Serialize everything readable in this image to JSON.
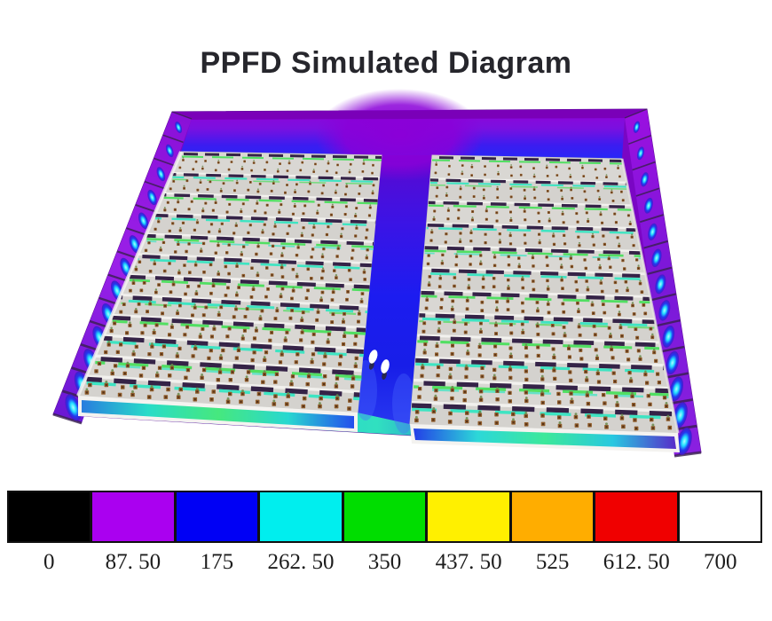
{
  "title": "PPFD Simulated Diagram",
  "diagram": {
    "description": "3D PPFD heat-map simulation of a grow room: two plant rack blocks with LED bars, purple walls with blue light pools, blue central aisle, two people standing in the aisle",
    "rows_per_rack": 12,
    "people_count": 2,
    "colors": {
      "floor_base": "#7A06C4",
      "wall_edge_dark": "#5A0896",
      "back_strip": "#7A00B8",
      "rack_gray": "#D9D7D3",
      "rack_gray_alt": "#D4D2CE",
      "rack_outline": "#C8C6C2",
      "shelf_highlight": "#F5F4F1",
      "led_bar_dark": "#352347",
      "glow_green": "#4AE05C",
      "glow_cyan": "#36E6C2",
      "pot_brown": "#8F5C2A",
      "pot_dark": "#55321A",
      "leaf_green": "#6A8A4A",
      "front_white": "#F4F3F0",
      "wall_line_dark": "#38204E",
      "person_white": "#FFFFFF",
      "person_shadow": "#2A2A3A",
      "aisle_side_glow": "#4A6AFF"
    },
    "gradients": {
      "corridor": [
        "#9004D8",
        "#7A10E0",
        "#3C1CF0",
        "#2428F8"
      ],
      "aisle": [
        "#5C08D0",
        "#3A14E6",
        "#1C1CF0",
        "#181EE8",
        "#2A3CF2"
      ],
      "front_left": [
        "#2878E0",
        "#28DCC8",
        "#46E87E",
        "#28D8D0",
        "#2346EE"
      ],
      "front_right": [
        "#2336E8",
        "#2CD8D8",
        "#3CE89A",
        "#28C8E0",
        "#5A20C8"
      ],
      "floor_front": [
        "#3028D0",
        "#28C8E0",
        "#30E0C0",
        "#2838E8",
        "#6A10B8"
      ],
      "oval": [
        "#AFFCFF",
        "#22E0FF",
        "#2238F0",
        "#4A18C8"
      ],
      "wall_left": [
        "#8A10D8",
        "#9A20E8",
        "#6A18D4"
      ],
      "wall_right": [
        "#9A10E0",
        "#7A18D8",
        "#8A20E0"
      ],
      "junction_blob": "#8A00D8"
    }
  },
  "colorbar": {
    "blocks": [
      {
        "color": "#000000",
        "label": "0"
      },
      {
        "color": "#AA00F0",
        "label": "87. 50"
      },
      {
        "color": "#0000F5",
        "label": "175"
      },
      {
        "color": "#00EEEE",
        "label": "262. 50"
      },
      {
        "color": "#00DD00",
        "label": "350"
      },
      {
        "color": "#FFF000",
        "label": "437. 50"
      },
      {
        "color": "#FFAD00",
        "label": "525"
      },
      {
        "color": "#F00000",
        "label": "612. 50"
      },
      {
        "color": "#FFFFFF",
        "label": "700"
      }
    ]
  }
}
